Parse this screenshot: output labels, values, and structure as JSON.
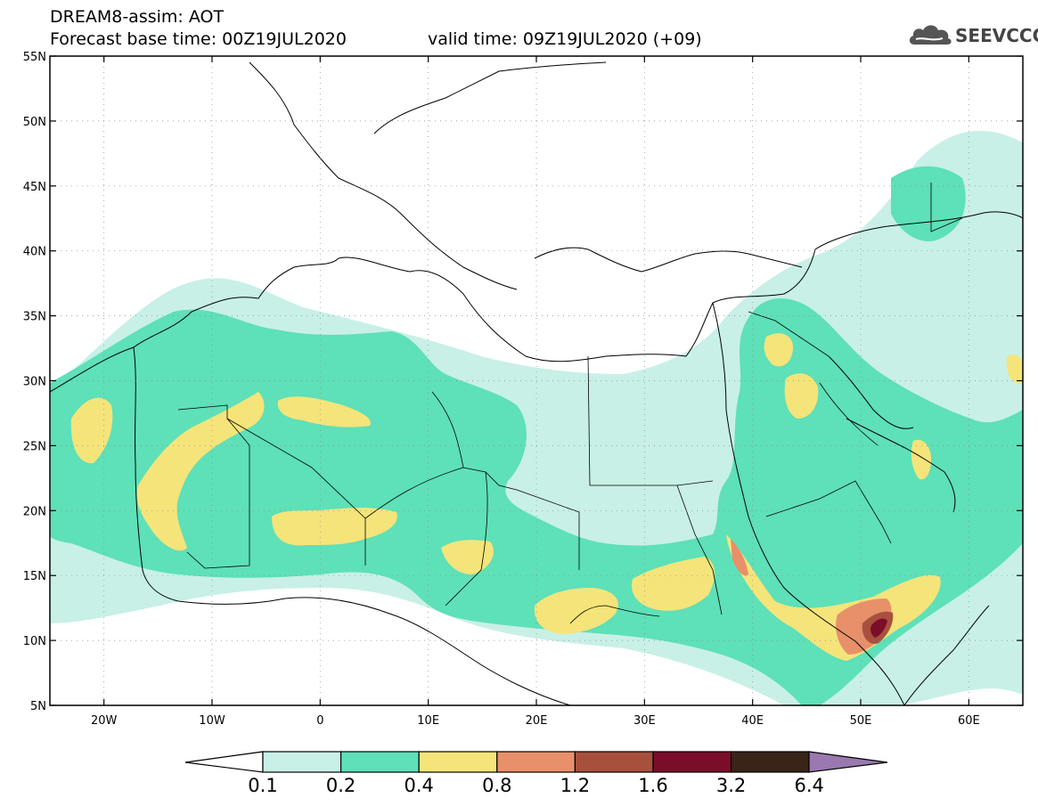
{
  "header": {
    "title": "DREAM8-assim: AOT",
    "base_time": "Forecast base time: 00Z19JUL2020",
    "valid_time": "valid time: 09Z19JUL2020 (+09)"
  },
  "logo": {
    "text": "SEEVCCC",
    "icon": "cloud-icon"
  },
  "map": {
    "lon_range": [
      -25,
      65
    ],
    "lat_range": [
      5,
      55
    ],
    "lon_ticks": [
      {
        "value": -20,
        "label": "20W"
      },
      {
        "value": -10,
        "label": "10W"
      },
      {
        "value": 0,
        "label": "0"
      },
      {
        "value": 10,
        "label": "10E"
      },
      {
        "value": 20,
        "label": "20E"
      },
      {
        "value": 30,
        "label": "30E"
      },
      {
        "value": 40,
        "label": "40E"
      },
      {
        "value": 50,
        "label": "50E"
      },
      {
        "value": 60,
        "label": "60E"
      }
    ],
    "lat_ticks": [
      {
        "value": 55,
        "label": "55N"
      },
      {
        "value": 50,
        "label": "50N"
      },
      {
        "value": 45,
        "label": "45N"
      },
      {
        "value": 40,
        "label": "40N"
      },
      {
        "value": 35,
        "label": "35N"
      },
      {
        "value": 30,
        "label": "30N"
      },
      {
        "value": 25,
        "label": "25N"
      },
      {
        "value": 20,
        "label": "20N"
      },
      {
        "value": 15,
        "label": "15N"
      },
      {
        "value": 10,
        "label": "10N"
      },
      {
        "value": 5,
        "label": "5N"
      }
    ],
    "grid": "dotted"
  },
  "colorbar": {
    "levels": [
      "0.1",
      "0.2",
      "0.4",
      "0.8",
      "1.2",
      "1.6",
      "3.2",
      "6.4"
    ],
    "colors": [
      "#c8f0e6",
      "#5ee0b8",
      "#f5e47a",
      "#e8906a",
      "#a8503e",
      "#7a0e2a",
      "#3a2418",
      "#9a78b0"
    ]
  }
}
